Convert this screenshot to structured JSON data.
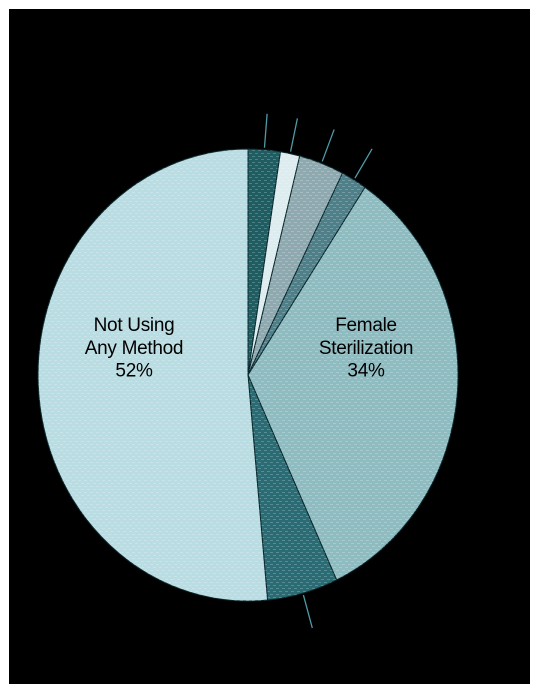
{
  "chart_data": {
    "type": "pie",
    "title": "",
    "start": "top",
    "direction": "clockwise",
    "legend": "none",
    "slices": [
      {
        "label_lines": [],
        "value": 2.5,
        "color": "#1f5d63",
        "leader": true
      },
      {
        "label_lines": [],
        "value": 1.5,
        "color": "#dcecef",
        "leader": true
      },
      {
        "label_lines": [],
        "value": 3.5,
        "color": "#8fa9b1",
        "leader": true
      },
      {
        "label_lines": [],
        "value": 2.0,
        "color": "#4f7f89",
        "leader": true
      },
      {
        "label_lines": [
          "Female",
          "Sterilization",
          "34%"
        ],
        "value": 34,
        "color": "#8fbcc1",
        "leader": false
      },
      {
        "label_lines": [],
        "value": 5.5,
        "color": "#2a6b74",
        "leader": true
      },
      {
        "label_lines": [
          "Not Using",
          "Any Method",
          "52%"
        ],
        "value": 52,
        "color": "#b9dde2",
        "leader": false
      }
    ]
  }
}
